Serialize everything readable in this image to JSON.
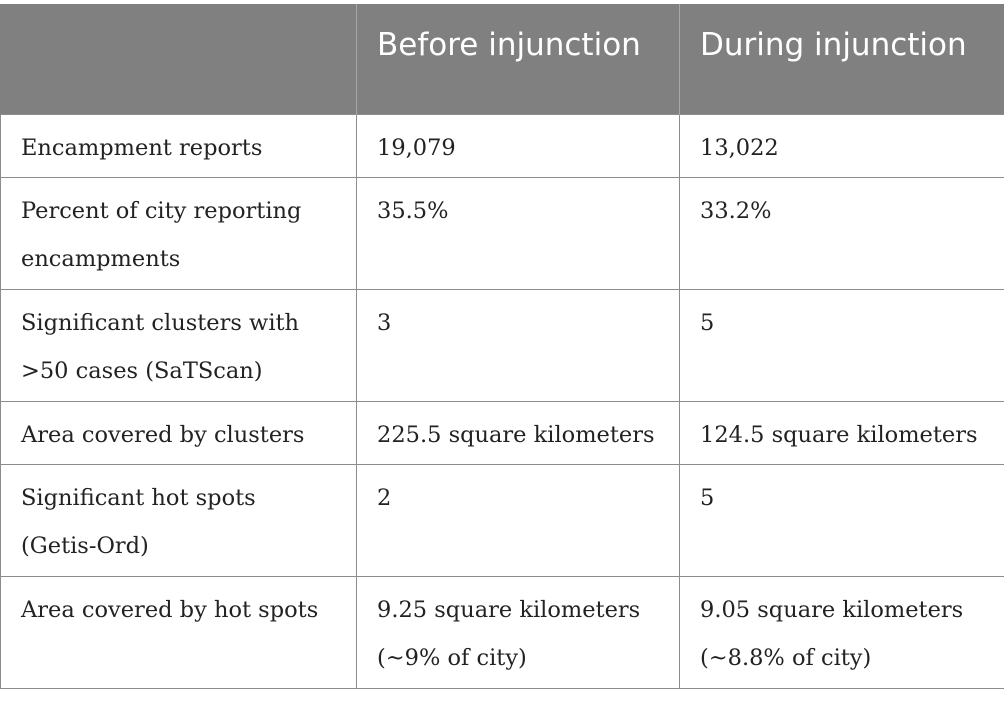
{
  "header": {
    "col0": "",
    "col1": "Before injunction",
    "col2": "During injunction"
  },
  "rows": [
    {
      "label": "Encampment reports",
      "before": "19,079",
      "during": "13,022"
    },
    {
      "label": "Percent of city reporting encampments",
      "before": "35.5%",
      "during": "33.2%"
    },
    {
      "label": "Significant clusters with >50 cases (SaTScan)",
      "before": "3",
      "during": "5"
    },
    {
      "label": "Area covered by clusters",
      "before": "225.5 square kilometers",
      "during": "124.5 square kilometers"
    },
    {
      "label": "Significant hot spots (Getis-Ord)",
      "before": "2",
      "during": "5"
    },
    {
      "label": "Area covered by hot spots",
      "before": "9.25 square kilometers (~9% of city)",
      "during": "9.05 square kilometers (~8.8% of city)"
    }
  ]
}
